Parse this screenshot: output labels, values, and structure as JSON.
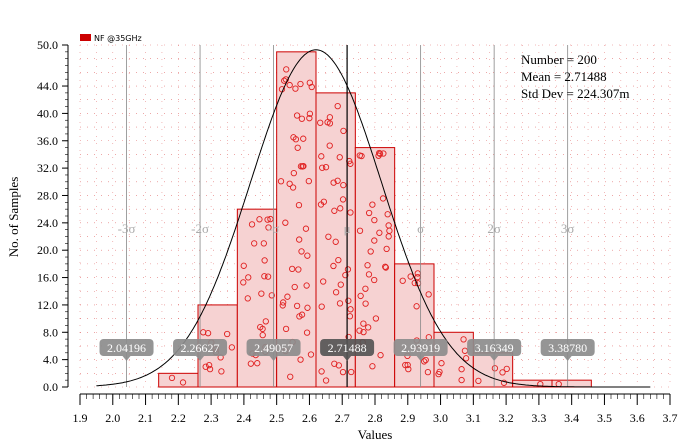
{
  "chart_data": {
    "type": "histogram",
    "legend": {
      "label": "NF @35GHz",
      "color": "#cc0000",
      "position": "top-left"
    },
    "ylabel": "No. of Samples",
    "xlabel": "Values",
    "xlim": [
      1.9,
      3.7
    ],
    "ylim": [
      0,
      50
    ],
    "x_ticks": [
      "1.9",
      "2.0",
      "2.1",
      "2.2",
      "2.3",
      "2.4",
      "2.5",
      "2.6",
      "2.7",
      "2.8",
      "2.9",
      "3.0",
      "3.1",
      "3.2",
      "3.3",
      "3.4",
      "3.5",
      "3.6",
      "3.7"
    ],
    "y_ticks": [
      "0.0",
      "4.0",
      "8.0",
      "12.0",
      "16.0",
      "20.0",
      "24.0",
      "28.0",
      "32.0",
      "36.0",
      "40.0",
      "44.0",
      "50.0"
    ],
    "bins": [
      {
        "x0": 2.14,
        "x1": 2.26,
        "count": 2
      },
      {
        "x0": 2.26,
        "x1": 2.38,
        "count": 12
      },
      {
        "x0": 2.38,
        "x1": 2.5,
        "count": 26
      },
      {
        "x0": 2.5,
        "x1": 2.62,
        "count": 49
      },
      {
        "x0": 2.62,
        "x1": 2.74,
        "count": 43
      },
      {
        "x0": 2.74,
        "x1": 2.86,
        "count": 35
      },
      {
        "x0": 2.86,
        "x1": 2.98,
        "count": 18
      },
      {
        "x0": 2.98,
        "x1": 3.1,
        "count": 8
      },
      {
        "x0": 3.1,
        "x1": 3.22,
        "count": 5
      },
      {
        "x0": 3.22,
        "x1": 3.34,
        "count": 1
      },
      {
        "x0": 3.34,
        "x1": 3.46,
        "count": 1
      }
    ],
    "stats": {
      "number": "Number = 200",
      "mean": "Mean = 2.71488",
      "std": "Std Dev = 224.307m"
    },
    "sigma_lines": [
      {
        "label": "-3σ",
        "value": 2.04196
      },
      {
        "label": "-2σ",
        "value": 2.26627
      },
      {
        "label": "-σ",
        "value": 2.49057
      },
      {
        "label": "μ",
        "value": 2.71488
      },
      {
        "label": "σ",
        "value": 2.93919
      },
      {
        "label": "2σ",
        "value": 3.16349
      },
      {
        "label": "3σ",
        "value": 3.3878
      }
    ],
    "sigma_value_labels": [
      "2.04196",
      "2.26627",
      "2.49057",
      "2.71488",
      "2.93919",
      "3.16349",
      "3.38780"
    ],
    "fit_curve": {
      "type": "normal",
      "mean": 2.62,
      "sd": 0.2,
      "peak": 49.3,
      "color": "#000000"
    },
    "colors": {
      "bar_fill": "#f6d2d2",
      "bar_edge": "#cc0000",
      "point": "#e02020",
      "grid_dot": "#cc0000"
    }
  }
}
